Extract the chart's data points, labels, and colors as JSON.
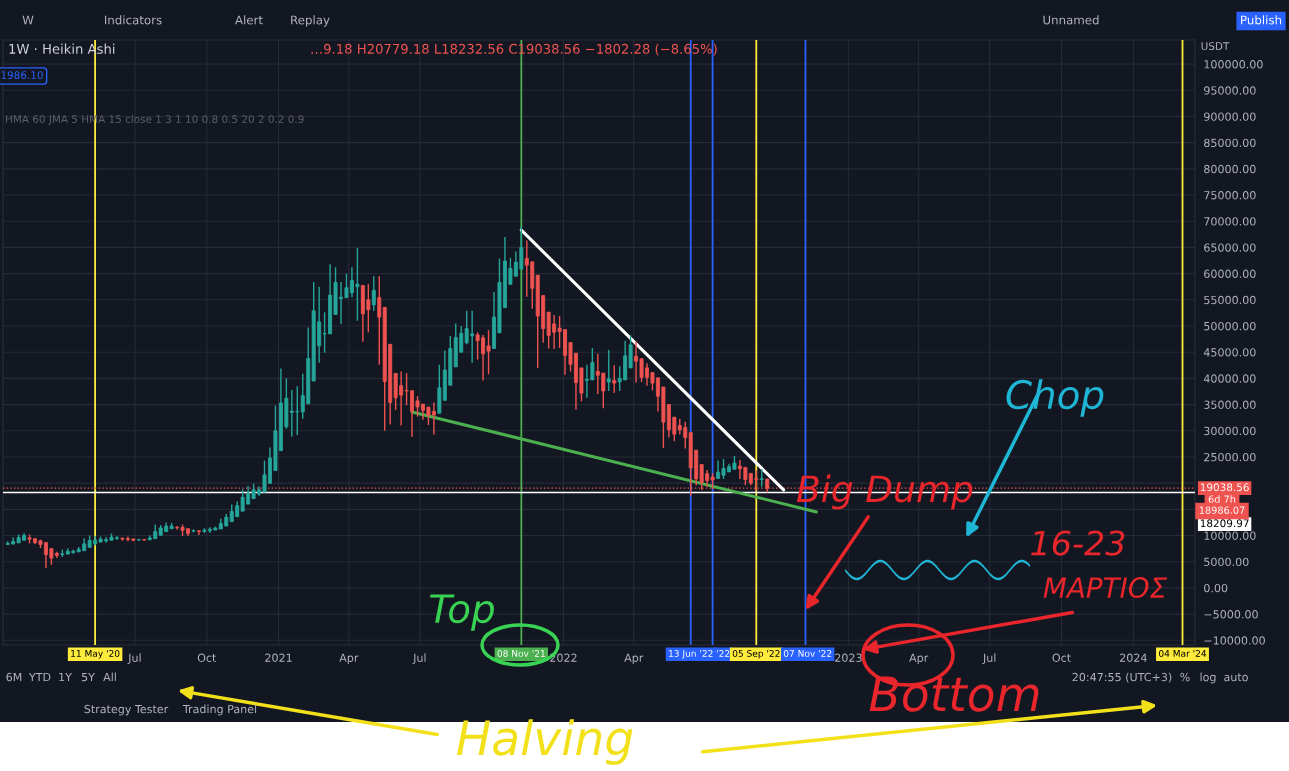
{
  "chart_data": {
    "type": "candlestick",
    "title": "1W · Heikin Ashi",
    "subtitle": "…9.18 H20779.18 L18232.56 C19038.56 −1802.28 (−8.65%)",
    "x": [
      "2020-01-20",
      "2020-01-27",
      "2020-02-03",
      "2020-02-10",
      "2020-02-17",
      "2020-02-24",
      "2020-03-02",
      "2020-03-09",
      "2020-03-16",
      "2020-03-23",
      "2020-03-30",
      "2020-04-06",
      "2020-04-13",
      "2020-04-20",
      "2020-04-27",
      "2020-05-04",
      "2020-05-11",
      "2020-05-18",
      "2020-05-25",
      "2020-06-01",
      "2020-06-08",
      "2020-06-15",
      "2020-06-22",
      "2020-06-29",
      "2020-07-06",
      "2020-07-13",
      "2020-07-20",
      "2020-07-27",
      "2020-08-03",
      "2020-08-10",
      "2020-08-17",
      "2020-08-24",
      "2020-08-31",
      "2020-09-07",
      "2020-09-14",
      "2020-09-21",
      "2020-09-28",
      "2020-10-05",
      "2020-10-12",
      "2020-10-19",
      "2020-10-26",
      "2020-11-02",
      "2020-11-09",
      "2020-11-16",
      "2020-11-23",
      "2020-11-30",
      "2020-12-07",
      "2020-12-14",
      "2020-12-21",
      "2020-12-28",
      "2021-01-04",
      "2021-01-11",
      "2021-01-18",
      "2021-01-25",
      "2021-02-01",
      "2021-02-08",
      "2021-02-15",
      "2021-02-22",
      "2021-03-01",
      "2021-03-08",
      "2021-03-15",
      "2021-03-22",
      "2021-03-29",
      "2021-04-05",
      "2021-04-12",
      "2021-04-19",
      "2021-04-26",
      "2021-05-03",
      "2021-05-10",
      "2021-05-17",
      "2021-05-24",
      "2021-05-31",
      "2021-06-07",
      "2021-06-14",
      "2021-06-21",
      "2021-06-28",
      "2021-07-05",
      "2021-07-12",
      "2021-07-19",
      "2021-07-26",
      "2021-08-02",
      "2021-08-09",
      "2021-08-16",
      "2021-08-23",
      "2021-08-30",
      "2021-09-06",
      "2021-09-13",
      "2021-09-20",
      "2021-09-27",
      "2021-10-04",
      "2021-10-11",
      "2021-10-18",
      "2021-10-25",
      "2021-11-01",
      "2021-11-08",
      "2021-11-15",
      "2021-11-22",
      "2021-11-29",
      "2021-12-06",
      "2021-12-13",
      "2021-12-20",
      "2021-12-27",
      "2022-01-03",
      "2022-01-10",
      "2022-01-17",
      "2022-01-24",
      "2022-01-31",
      "2022-02-07",
      "2022-02-14",
      "2022-02-21",
      "2022-02-28",
      "2022-03-07",
      "2022-03-14",
      "2022-03-21",
      "2022-03-28",
      "2022-04-04",
      "2022-04-11",
      "2022-04-18",
      "2022-04-25",
      "2022-05-02",
      "2022-05-09",
      "2022-05-16",
      "2022-05-23",
      "2022-05-30",
      "2022-06-06",
      "2022-06-13",
      "2022-06-20",
      "2022-06-27",
      "2022-07-04",
      "2022-07-11",
      "2022-07-18",
      "2022-07-25",
      "2022-08-01",
      "2022-08-08",
      "2022-08-15",
      "2022-08-22",
      "2022-08-29",
      "2022-09-05",
      "2022-09-12",
      "2022-09-19"
    ],
    "ohlc": [
      [
        8300,
        8900,
        8200,
        8500
      ],
      [
        8400,
        9600,
        8300,
        8850
      ],
      [
        8600,
        10200,
        8600,
        9600
      ],
      [
        9100,
        10500,
        9100,
        10000
      ],
      [
        9550,
        10200,
        8500,
        9300
      ],
      [
        9400,
        9400,
        8400,
        8650
      ],
      [
        9000,
        9200,
        7600,
        8300
      ],
      [
        8650,
        8650,
        3800,
        6350
      ],
      [
        7500,
        7500,
        4400,
        5700
      ],
      [
        6600,
        6900,
        5700,
        6200
      ],
      [
        6400,
        7300,
        5900,
        6500
      ],
      [
        6450,
        7500,
        6450,
        7000
      ],
      [
        6750,
        7300,
        6500,
        7000
      ],
      [
        6900,
        7800,
        6800,
        7350
      ],
      [
        7100,
        9500,
        7100,
        8400
      ],
      [
        7750,
        10000,
        7750,
        9050
      ],
      [
        8400,
        9900,
        8100,
        9100
      ],
      [
        8750,
        9800,
        8750,
        9300
      ],
      [
        9000,
        9700,
        8600,
        9200
      ],
      [
        9100,
        10400,
        9100,
        9700
      ],
      [
        9400,
        9900,
        9200,
        9550
      ],
      [
        9500,
        9600,
        9000,
        9350
      ],
      [
        9400,
        9800,
        8900,
        9250
      ],
      [
        9350,
        9350,
        8900,
        9100
      ],
      [
        9150,
        9400,
        9000,
        9200
      ],
      [
        9200,
        9300,
        9000,
        9150
      ],
      [
        9200,
        10000,
        9100,
        9550
      ],
      [
        9400,
        12100,
        9400,
        10750
      ],
      [
        10050,
        12000,
        10050,
        11450
      ],
      [
        10750,
        12500,
        10750,
        11800
      ],
      [
        11300,
        12400,
        11300,
        11800
      ],
      [
        11550,
        11800,
        11100,
        11500
      ],
      [
        11550,
        12100,
        9900,
        11000
      ],
      [
        11300,
        11300,
        9900,
        10400
      ],
      [
        10850,
        11200,
        10600,
        10900
      ],
      [
        10900,
        11000,
        10100,
        10750
      ],
      [
        10800,
        11400,
        10500,
        11000
      ],
      [
        10900,
        11600,
        10500,
        11200
      ],
      [
        11050,
        11700,
        11050,
        11450
      ],
      [
        11250,
        13200,
        11250,
        12300
      ],
      [
        11800,
        14100,
        11800,
        13500
      ],
      [
        12650,
        15900,
        12650,
        14600
      ],
      [
        13600,
        16500,
        13600,
        15700
      ],
      [
        14650,
        18800,
        14650,
        17300
      ],
      [
        16000,
        19500,
        16000,
        18100
      ],
      [
        17050,
        19900,
        17050,
        18750
      ],
      [
        17900,
        19400,
        17600,
        18750
      ],
      [
        18300,
        24300,
        18300,
        21600
      ],
      [
        19950,
        26800,
        19950,
        24800
      ],
      [
        22400,
        34800,
        22400,
        30000
      ],
      [
        26200,
        41900,
        26200,
        35300
      ],
      [
        30750,
        40000,
        30400,
        36200
      ],
      [
        33500,
        37800,
        28900,
        33750
      ],
      [
        33600,
        38500,
        29200,
        33650
      ],
      [
        33600,
        40900,
        32300,
        36700
      ],
      [
        35150,
        49700,
        35150,
        43800
      ],
      [
        39500,
        58400,
        39500,
        52900
      ],
      [
        46200,
        57500,
        43000,
        50800
      ],
      [
        48500,
        52600,
        44900,
        48550
      ],
      [
        48500,
        61800,
        48500,
        55900
      ],
      [
        52200,
        61200,
        52200,
        58300
      ],
      [
        55250,
        58400,
        50400,
        55500
      ],
      [
        55400,
        60000,
        55400,
        57300
      ],
      [
        56350,
        61200,
        55500,
        58700
      ],
      [
        57500,
        64900,
        51000,
        58000
      ],
      [
        57750,
        57750,
        47000,
        52300
      ],
      [
        55000,
        58000,
        48800,
        53100
      ],
      [
        54050,
        59500,
        52900,
        56800
      ],
      [
        55400,
        59500,
        42600,
        51700
      ],
      [
        53550,
        53550,
        30000,
        39400
      ],
      [
        46500,
        46500,
        31200,
        35400
      ],
      [
        40950,
        40950,
        34000,
        36300
      ],
      [
        38600,
        41300,
        31000,
        36800
      ],
      [
        37700,
        41000,
        34900,
        37600
      ],
      [
        37650,
        37650,
        28800,
        33700
      ],
      [
        35700,
        36600,
        32700,
        34550
      ],
      [
        35100,
        35100,
        32100,
        33900
      ],
      [
        34500,
        34600,
        31100,
        32900
      ],
      [
        33700,
        35400,
        29300,
        33000
      ],
      [
        33350,
        42600,
        33350,
        38200
      ],
      [
        35800,
        45300,
        35800,
        41600
      ],
      [
        38700,
        48100,
        38700,
        45700
      ],
      [
        42200,
        50500,
        42200,
        47800
      ],
      [
        45000,
        50000,
        45000,
        48600
      ],
      [
        46800,
        52900,
        46500,
        49500
      ],
      [
        48150,
        52900,
        43000,
        48500
      ],
      [
        48300,
        48800,
        43600,
        47200
      ],
      [
        47750,
        48300,
        39600,
        44700
      ],
      [
        46200,
        49200,
        40800,
        45200
      ],
      [
        45700,
        56500,
        45700,
        51700
      ],
      [
        48700,
        62900,
        48700,
        58300
      ],
      [
        53500,
        67000,
        53500,
        62400
      ],
      [
        57950,
        63000,
        57950,
        61000
      ],
      [
        59500,
        64200,
        59500,
        62200
      ],
      [
        60850,
        69000,
        60850,
        65000
      ],
      [
        62900,
        66300,
        55600,
        61600
      ],
      [
        62250,
        62250,
        53300,
        57200
      ],
      [
        59700,
        59700,
        42000,
        51900
      ],
      [
        55800,
        55800,
        46800,
        49500
      ],
      [
        52650,
        52650,
        45700,
        48200
      ],
      [
        50400,
        52100,
        45600,
        48800
      ],
      [
        49600,
        51900,
        45800,
        48950
      ],
      [
        49300,
        49300,
        40700,
        44400
      ],
      [
        46850,
        46850,
        41300,
        42700
      ],
      [
        44800,
        44800,
        34000,
        39200
      ],
      [
        42000,
        42000,
        35600,
        37200
      ],
      [
        39600,
        42600,
        36300,
        39800
      ],
      [
        39700,
        45800,
        39700,
        43000
      ],
      [
        41350,
        44700,
        37000,
        40600
      ],
      [
        41000,
        41000,
        34300,
        37600
      ],
      [
        39300,
        45400,
        37600,
        39900
      ],
      [
        39600,
        42500,
        37200,
        39100
      ],
      [
        39350,
        42300,
        37600,
        40000
      ],
      [
        39700,
        47200,
        39700,
        44300
      ],
      [
        42000,
        48200,
        42000,
        46400
      ],
      [
        44200,
        47000,
        39200,
        43300
      ],
      [
        43750,
        43750,
        39300,
        40200
      ],
      [
        42000,
        42900,
        38600,
        40200
      ],
      [
        41100,
        41100,
        37700,
        39100
      ],
      [
        40100,
        40100,
        33700,
        36600
      ],
      [
        38350,
        38350,
        26700,
        31650
      ],
      [
        35000,
        35000,
        28700,
        30200
      ],
      [
        32600,
        32600,
        28000,
        29350
      ],
      [
        31000,
        32300,
        29300,
        30200
      ],
      [
        30600,
        31700,
        26600,
        28700
      ],
      [
        29650,
        29650,
        17600,
        22900
      ],
      [
        26300,
        26300,
        19600,
        20800
      ],
      [
        23550,
        23550,
        18700,
        20100
      ],
      [
        21800,
        22500,
        19300,
        20500
      ],
      [
        21150,
        21900,
        18900,
        20600
      ],
      [
        20900,
        24300,
        20800,
        22100
      ],
      [
        21500,
        24600,
        20800,
        22800
      ],
      [
        22150,
        23700,
        22150,
        23150
      ],
      [
        22650,
        25200,
        22650,
        23850
      ],
      [
        23250,
        24400,
        20800,
        22750
      ],
      [
        23000,
        23000,
        19600,
        20700
      ],
      [
        21850,
        21850,
        19600,
        20000
      ],
      [
        20900,
        22400,
        18600,
        20650
      ],
      [
        20717.52,
        22700,
        19300,
        20840.84
      ],
      [
        20779.18,
        20779.18,
        18232.56,
        19038.56
      ]
    ],
    "series": [
      {
        "type": "line",
        "color": "#ffffff",
        "x": [
          "2021-11-08",
          "2022-10-10"
        ],
        "values": [
          68300,
          18700
        ]
      },
      {
        "type": "line",
        "color": "#4caf50",
        "x": [
          "2021-06-21",
          "2022-11-21"
        ],
        "values": [
          33600,
          14500
        ]
      }
    ],
    "ref_lines": [
      {
        "axis": "x",
        "value": "2020-05-11",
        "label": "11 May '20",
        "color": "#ffeb3b"
      },
      {
        "axis": "x",
        "value": "2021-11-08",
        "label": "08 Nov '21",
        "color": "#4caf50"
      },
      {
        "axis": "x",
        "value": "2022-06-13",
        "label": "13 Jun '22",
        "color": "#2962ff"
      },
      {
        "axis": "x",
        "value": "2022-07-11",
        "label": "'22",
        "color": "#2962ff"
      },
      {
        "axis": "x",
        "value": "2022-09-05",
        "label": "05 Sep '22",
        "color": "#ffeb3b"
      },
      {
        "axis": "x",
        "value": "2022-11-07",
        "label": "07 Nov '22",
        "color": "#2962ff"
      },
      {
        "axis": "x",
        "value": "2024-03-04",
        "label": "04 Mar '24",
        "color": "#ffeb3b"
      },
      {
        "axis": "y",
        "value": 19038.56,
        "label": "19038.56",
        "color": "#ef5350",
        "line_style": "dotted"
      },
      {
        "axis": "y",
        "value": 18209.97,
        "label": "18209.97",
        "color": "#ffffff",
        "line_style": "solid"
      }
    ],
    "xlim": [
      "2020-01-14",
      "2024-03-20"
    ],
    "xticks": [
      {
        "value": "2020-07-01",
        "label": "Jul"
      },
      {
        "value": "2020-10-01",
        "label": "Oct"
      },
      {
        "value": "2021-01-01",
        "label": "2021"
      },
      {
        "value": "2021-04-01",
        "label": "Apr"
      },
      {
        "value": "2021-07-01",
        "label": "Jul"
      },
      {
        "value": "2022-01-01",
        "label": "2022"
      },
      {
        "value": "2022-04-01",
        "label": "Apr"
      },
      {
        "value": "2023-01-01",
        "label": "2023"
      },
      {
        "value": "2023-04-01",
        "label": "Apr"
      },
      {
        "value": "2023-07-01",
        "label": "Jul"
      },
      {
        "value": "2023-10-01",
        "label": "Oct"
      },
      {
        "value": "2024-01-01",
        "label": "2024"
      }
    ],
    "ylim": [
      -10900,
      104600
    ],
    "yticks": [
      {
        "value": -10000,
        "label": "−10000.00"
      },
      {
        "value": -5000,
        "label": "−5000.00"
      },
      {
        "value": 0,
        "label": "0.00"
      },
      {
        "value": 5000,
        "label": "5000.00"
      },
      {
        "value": 10000,
        "label": "10000.00"
      },
      {
        "value": 15000,
        "label": null
      },
      {
        "value": 20000,
        "label": null
      },
      {
        "value": 25000,
        "label": "25000.00"
      },
      {
        "value": 30000,
        "label": "30000.00"
      },
      {
        "value": 35000,
        "label": "35000.00"
      },
      {
        "value": 40000,
        "label": "40000.00"
      },
      {
        "value": 45000,
        "label": "45000.00"
      },
      {
        "value": 50000,
        "label": "50000.00"
      },
      {
        "value": 55000,
        "label": "55000.00"
      },
      {
        "value": 60000,
        "label": "60000.00"
      },
      {
        "value": 65000,
        "label": "65000.00"
      },
      {
        "value": 70000,
        "label": "70000.00"
      },
      {
        "value": 75000,
        "label": "75000.00"
      },
      {
        "value": 80000,
        "label": "80000.00"
      },
      {
        "value": 85000,
        "label": "85000.00"
      },
      {
        "value": 90000,
        "label": "90000.00"
      },
      {
        "value": 95000,
        "label": "95000.00"
      },
      {
        "value": 100000,
        "label": "100000.00"
      }
    ],
    "grid": true,
    "annotations": [
      "W",
      "Indicators",
      "Alert",
      "Replay",
      "Unnamed",
      "Publish",
      "1986.10",
      "HMA 60 JMA 5 HMA 15 close 1 3 1 10 0.8 0.5 20 2 0.2 0.9",
      "USDT",
      "6d 7h",
      "18986.07",
      "6M",
      "YTD",
      "1Y",
      "5Y",
      "All",
      "20:47:55 (UTC+3)",
      "%",
      "log",
      "auto",
      "Strategy Tester",
      "Trading Panel",
      "Top",
      {
        "text": "Big Dump",
        "x": "2022-11-07",
        "y": -4200
      },
      "Chop",
      "16-23",
      "ΜΑΡΤΙΟΣ",
      "Bottom",
      "Halving"
    ]
  }
}
